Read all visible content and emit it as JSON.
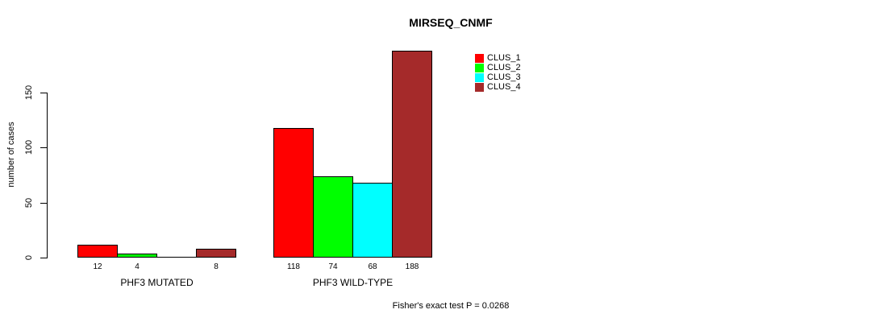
{
  "title": "MIRSEQ_CNMF",
  "footer": "Fisher's exact test P = 0.0268",
  "y_axis": {
    "label": "number of cases"
  },
  "legend": {
    "items": [
      {
        "label": "CLUS_1",
        "color": "#FF0000"
      },
      {
        "label": "CLUS_2",
        "color": "#00FF00"
      },
      {
        "label": "CLUS_3",
        "color": "#00FFFF"
      },
      {
        "label": "CLUS_4",
        "color": "#A52A2A"
      }
    ]
  },
  "chart_data": {
    "type": "bar",
    "title": "MIRSEQ_CNMF",
    "xlabel": "",
    "ylabel": "number of cases",
    "ylim": [
      0,
      150
    ],
    "yticks": [
      0,
      50,
      100,
      150
    ],
    "grid": false,
    "legend_position": "top-right",
    "categories": [
      "PHF3 MUTATED",
      "PHF3 WILD-TYPE"
    ],
    "series": [
      {
        "name": "CLUS_1",
        "color": "#FF0000",
        "values": [
          12,
          118
        ]
      },
      {
        "name": "CLUS_2",
        "color": "#00FF00",
        "values": [
          4,
          74
        ]
      },
      {
        "name": "CLUS_3",
        "color": "#00FFFF",
        "values": [
          0,
          68
        ]
      },
      {
        "name": "CLUS_4",
        "color": "#A52A2A",
        "values": [
          8,
          188
        ]
      }
    ],
    "bar_value_labels": [
      [
        "12",
        "4",
        "",
        "8"
      ],
      [
        "118",
        "74",
        "68",
        "188"
      ]
    ],
    "annotation": "Fisher's exact test P = 0.0268"
  }
}
